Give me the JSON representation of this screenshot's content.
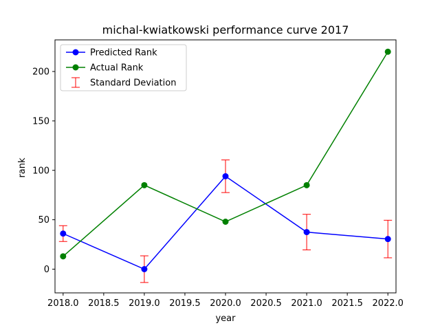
{
  "chart_data": {
    "type": "line",
    "title": "michal-kwiatkowski performance curve 2017",
    "xlabel": "year",
    "ylabel": "rank",
    "xlim": [
      2017.9,
      2022.1
    ],
    "ylim": [
      -24,
      232
    ],
    "xticks": [
      2018.0,
      2018.5,
      2019.0,
      2019.5,
      2020.0,
      2020.5,
      2021.0,
      2021.5,
      2022.0
    ],
    "xtick_labels": [
      "2018.0",
      "2018.5",
      "2019.0",
      "2019.5",
      "2020.0",
      "2020.5",
      "2021.0",
      "2021.5",
      "2022.0"
    ],
    "yticks": [
      0,
      50,
      100,
      150,
      200
    ],
    "ytick_labels": [
      "0",
      "50",
      "100",
      "150",
      "200"
    ],
    "grid": false,
    "legend_position": "top-left",
    "x": [
      2018,
      2019,
      2020,
      2021,
      2022
    ],
    "series": [
      {
        "name": "Predicted Rank",
        "color": "#0000ff",
        "marker": "circle",
        "values": [
          36,
          0,
          94,
          37.5,
          30.5
        ],
        "error": [
          8,
          13.5,
          16.5,
          18,
          19
        ]
      },
      {
        "name": "Actual Rank",
        "color": "#008000",
        "marker": "circle",
        "values": [
          13,
          85,
          48,
          85,
          220
        ]
      }
    ],
    "errorbar": {
      "name": "Standard Deviation",
      "color": "#ff0000"
    }
  }
}
